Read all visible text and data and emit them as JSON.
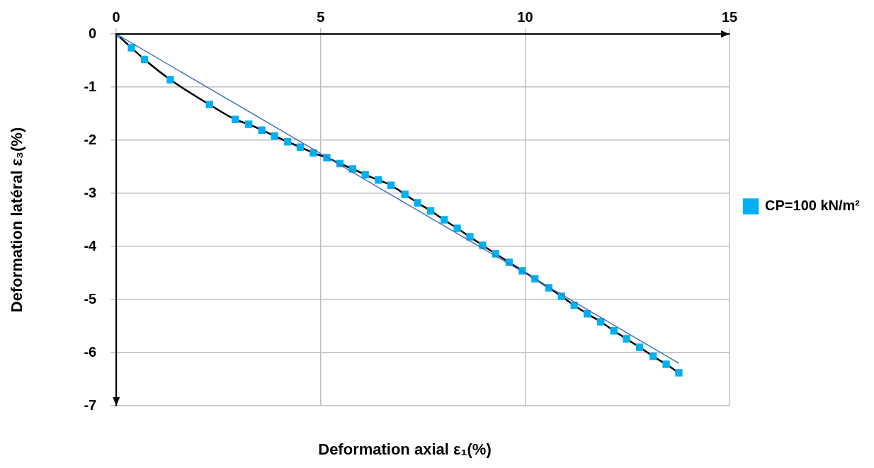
{
  "chart_data": {
    "type": "line",
    "xlabel": "Deformation axial ε₁(%)",
    "ylabel": "Deformation latéral ε₃(%)",
    "xlim": [
      0,
      15
    ],
    "xticks": [
      0,
      5,
      10,
      15
    ],
    "ylim": [
      -7,
      0
    ],
    "yticks": [
      -7,
      -6,
      -5,
      -4,
      -3,
      -2,
      -1,
      0
    ],
    "grid": true,
    "legend": "right",
    "marker": "square",
    "series": [
      {
        "name": "CP=100 kN/m²",
        "color": "#00b0f0",
        "x": [
          0,
          0.37,
          0.69,
          1.32,
          2.28,
          2.91,
          3.24,
          3.56,
          3.87,
          4.19,
          4.5,
          4.82,
          5.15,
          5.47,
          5.78,
          6.09,
          6.41,
          6.72,
          7.06,
          7.37,
          7.69,
          8.02,
          8.34,
          8.65,
          8.96,
          9.28,
          9.61,
          9.93,
          10.24,
          10.58,
          10.89,
          11.2,
          11.52,
          11.85,
          12.17,
          12.48,
          12.8,
          13.13,
          13.45,
          13.76
        ],
        "values": [
          0,
          -0.26,
          -0.48,
          -0.86,
          -1.33,
          -1.61,
          -1.7,
          -1.81,
          -1.92,
          -2.03,
          -2.13,
          -2.24,
          -2.33,
          -2.44,
          -2.54,
          -2.65,
          -2.75,
          -2.85,
          -3.02,
          -3.18,
          -3.33,
          -3.5,
          -3.66,
          -3.82,
          -3.98,
          -4.14,
          -4.3,
          -4.46,
          -4.61,
          -4.78,
          -4.94,
          -5.11,
          -5.27,
          -5.42,
          -5.59,
          -5.74,
          -5.9,
          -6.07,
          -6.22,
          -6.38
        ]
      },
      {
        "type": "line",
        "marker": "none",
        "color": "#4472c4",
        "x": [
          0,
          13.76
        ],
        "values": [
          0,
          -6.2
        ]
      }
    ]
  }
}
